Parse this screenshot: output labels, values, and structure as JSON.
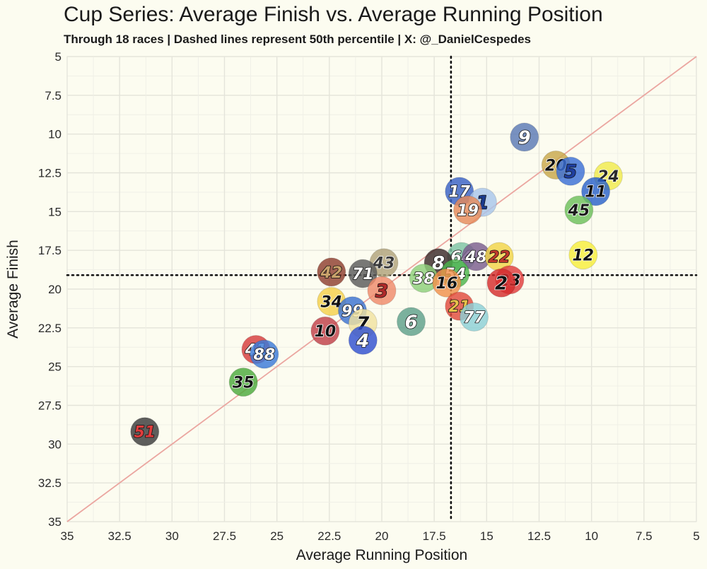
{
  "header": {
    "title": "Cup Series: Average Finish vs. Average Running Position",
    "subtitle": "Through 18 races | Dashed lines represent 50th percentile | X: @_DanielCespedes"
  },
  "chart_data": {
    "type": "scatter",
    "title": "Cup Series: Average Finish vs. Average Running Position",
    "subtitle": "Through 18 races | Dashed lines represent 50th percentile | X: @_DanielCespedes",
    "xlabel": "Average Running Position",
    "ylabel": "Average Finish",
    "xlim": [
      35,
      5
    ],
    "ylim": [
      35,
      5
    ],
    "x_reversed": true,
    "y_reversed": true,
    "xticks": [
      "35",
      "32.5",
      "30",
      "27.5",
      "25",
      "22.5",
      "20",
      "17.5",
      "15",
      "12.5",
      "10",
      "7.5",
      "5"
    ],
    "yticks": [
      "5",
      "7.5",
      "10",
      "12.5",
      "15",
      "17.5",
      "20",
      "22.5",
      "25",
      "27.5",
      "30",
      "32.5",
      "35"
    ],
    "grid": true,
    "median_lines": {
      "x": 16.7,
      "y": 19.1,
      "style": "dotted"
    },
    "reference_line": "y = x",
    "points": [
      {
        "car": "9",
        "x": 13.2,
        "y": 10.2,
        "color": "#5a79b4",
        "text": "#ffffff"
      },
      {
        "car": "20",
        "x": 11.7,
        "y": 12.0,
        "color": "#c8a74a",
        "text": "#111111"
      },
      {
        "car": "5",
        "x": 11.0,
        "y": 12.4,
        "color": "#3b6fd6",
        "text": "#1f3fa0"
      },
      {
        "car": "24",
        "x": 9.2,
        "y": 12.7,
        "color": "#f0ea4c",
        "text": "#2a2a2a"
      },
      {
        "car": "11",
        "x": 9.8,
        "y": 13.7,
        "color": "#2a62c9",
        "text": "#111111"
      },
      {
        "car": "17",
        "x": 16.3,
        "y": 13.7,
        "color": "#3860c4",
        "text": "#ffffff"
      },
      {
        "car": "1",
        "x": 15.2,
        "y": 14.4,
        "color": "#a8c6ea",
        "text": "#1b3b8c"
      },
      {
        "car": "19",
        "x": 15.9,
        "y": 14.9,
        "color": "#e58a5a",
        "text": "#ffffff"
      },
      {
        "car": "45",
        "x": 10.6,
        "y": 14.9,
        "color": "#6cbf5a",
        "text": "#1a1a1a"
      },
      {
        "car": "64",
        "x": 16.2,
        "y": 17.9,
        "color": "#7cc3a3",
        "text": "#ffffff"
      },
      {
        "car": "48",
        "x": 15.5,
        "y": 17.9,
        "color": "#7a5d8e",
        "text": "#ffffff"
      },
      {
        "car": "22",
        "x": 14.4,
        "y": 17.9,
        "color": "#f1d448",
        "text": "#c0392b"
      },
      {
        "car": "12",
        "x": 10.4,
        "y": 17.8,
        "color": "#f7ee3c",
        "text": "#111111"
      },
      {
        "car": "8",
        "x": 17.3,
        "y": 18.3,
        "color": "#3a2a2a",
        "text": "#ffffff"
      },
      {
        "car": "43",
        "x": 19.9,
        "y": 18.3,
        "color": "#b0a27a",
        "text": "#3a3a3a"
      },
      {
        "car": "42",
        "x": 22.4,
        "y": 18.9,
        "color": "#8d3e2e",
        "text": "#c9a26b"
      },
      {
        "car": "71",
        "x": 20.9,
        "y": 19.0,
        "color": "#5a5a5a",
        "text": "#ffffff"
      },
      {
        "car": "54",
        "x": 16.5,
        "y": 19.0,
        "color": "#4cb44c",
        "text": "#ffffff"
      },
      {
        "car": "38",
        "x": 18.0,
        "y": 19.3,
        "color": "#8ed07a",
        "text": "#ffffff"
      },
      {
        "car": "16",
        "x": 16.9,
        "y": 19.6,
        "color": "#f0904a",
        "text": "#111111"
      },
      {
        "car": "3",
        "x": 20.0,
        "y": 20.1,
        "color": "#ef8a6a",
        "text": "#b02a2a"
      },
      {
        "car": "23",
        "x": 13.9,
        "y": 19.4,
        "color": "#e03c3c",
        "text": "#111111"
      },
      {
        "car": "2",
        "x": 14.3,
        "y": 19.6,
        "color": "#d42c2c",
        "text": "#111111"
      },
      {
        "car": "34",
        "x": 22.4,
        "y": 20.8,
        "color": "#f4d04a",
        "text": "#111111"
      },
      {
        "car": "21",
        "x": 16.3,
        "y": 21.1,
        "color": "#e04a3c",
        "text": "#e8c24a"
      },
      {
        "car": "99",
        "x": 21.4,
        "y": 21.4,
        "color": "#3a72d0",
        "text": "#ffffff"
      },
      {
        "car": "7",
        "x": 20.9,
        "y": 22.2,
        "color": "#f0e2a0",
        "text": "#111111"
      },
      {
        "car": "77",
        "x": 15.6,
        "y": 21.8,
        "color": "#8ccfd6",
        "text": "#ffffff"
      },
      {
        "car": "6",
        "x": 18.6,
        "y": 22.1,
        "color": "#5ea08a",
        "text": "#ffffff"
      },
      {
        "car": "10",
        "x": 22.7,
        "y": 22.7,
        "color": "#c04048",
        "text": "#111111"
      },
      {
        "car": "4",
        "x": 20.9,
        "y": 23.3,
        "color": "#2f4fd0",
        "text": "#ffffff"
      },
      {
        "car": "41",
        "x": 26.0,
        "y": 23.9,
        "color": "#d63c3c",
        "text": "#ffffff"
      },
      {
        "car": "88",
        "x": 25.6,
        "y": 24.2,
        "color": "#3a7ad8",
        "text": "#ffffff"
      },
      {
        "car": "35",
        "x": 26.6,
        "y": 26.0,
        "color": "#4caa3c",
        "text": "#111111"
      },
      {
        "car": "51",
        "x": 31.3,
        "y": 29.2,
        "color": "#3a3a3a",
        "text": "#e23c3c"
      }
    ]
  }
}
